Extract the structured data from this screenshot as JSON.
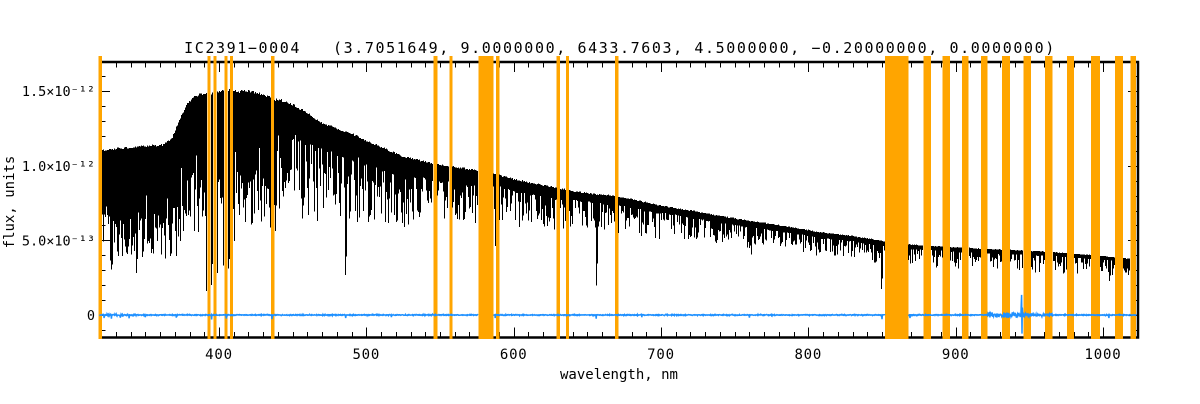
{
  "title": "IC2391−0004   (3.7051649, 9.0000000, 6433.7603, 4.5000000, −0.20000000, 0.0000000)",
  "colors": {
    "masked_band": "#FFA500",
    "spectrum": "#000000",
    "residual": "#1E90FF",
    "axis": "#000000"
  },
  "chart_data": {
    "type": "line",
    "xlabel": "wavelength, nm",
    "ylabel": "flux, units",
    "flux_unit": "1e-12 flux units per unit value",
    "x_range": [
      318,
      1023
    ],
    "y_range": [
      -0.152,
      1.695
    ],
    "x_ticks": [
      {
        "v": 400,
        "label": "400"
      },
      {
        "v": 500,
        "label": "500"
      },
      {
        "v": 600,
        "label": "600"
      },
      {
        "v": 700,
        "label": "700"
      },
      {
        "v": 800,
        "label": "800"
      },
      {
        "v": 900,
        "label": "900"
      },
      {
        "v": 1000,
        "label": "1000"
      }
    ],
    "y_ticks": [
      {
        "v": 0,
        "label": "0"
      },
      {
        "v": 0.5,
        "label": "5.0×10⁻¹³"
      },
      {
        "v": 1.0,
        "label": "1.0×10⁻¹²"
      },
      {
        "v": 1.5,
        "label": "1.5×10⁻¹²"
      }
    ],
    "x_minor_step": 10,
    "y_minor_step": 0.1,
    "masked_bands": [
      [
        318.3,
        320.6
      ],
      [
        392.1,
        394.3
      ],
      [
        396.1,
        398.4
      ],
      [
        403.6,
        405.9
      ],
      [
        407.5,
        409.7
      ],
      [
        435.3,
        437.6
      ],
      [
        545.5,
        548.2
      ],
      [
        556.3,
        558.4
      ],
      [
        576.0,
        586.2
      ],
      [
        588.0,
        590.3
      ],
      [
        629.2,
        631.4
      ],
      [
        635.5,
        637.6
      ],
      [
        668.8,
        671.1
      ],
      [
        852.1,
        867.9
      ],
      [
        878.1,
        883.1
      ],
      [
        891.2,
        896.2
      ],
      [
        904.2,
        908.7
      ],
      [
        917.3,
        921.5
      ],
      [
        931.3,
        937.0
      ],
      [
        946.0,
        951.0
      ],
      [
        960.7,
        965.7
      ],
      [
        975.4,
        980.4
      ],
      [
        991.7,
        998.0
      ],
      [
        1008.2,
        1013.4
      ],
      [
        1018.5,
        1022.3
      ]
    ],
    "spectrum": {
      "seed": 20391,
      "continuum": [
        [
          318,
          1.08
        ],
        [
          330,
          1.095
        ],
        [
          342,
          1.105
        ],
        [
          354,
          1.115
        ],
        [
          362,
          1.12
        ],
        [
          368,
          1.16
        ],
        [
          373,
          1.28
        ],
        [
          378,
          1.38
        ],
        [
          383,
          1.44
        ],
        [
          388,
          1.455
        ],
        [
          394,
          1.46
        ],
        [
          400,
          1.47
        ],
        [
          405,
          1.48
        ],
        [
          409,
          1.485
        ],
        [
          413,
          1.47
        ],
        [
          419,
          1.475
        ],
        [
          425,
          1.465
        ],
        [
          431,
          1.45
        ],
        [
          437,
          1.42
        ],
        [
          444,
          1.41
        ],
        [
          451,
          1.38
        ],
        [
          459,
          1.335
        ],
        [
          469,
          1.27
        ],
        [
          480,
          1.225
        ],
        [
          491,
          1.19
        ],
        [
          502,
          1.14
        ],
        [
          514,
          1.09
        ],
        [
          526,
          1.04
        ],
        [
          538,
          1.015
        ],
        [
          550,
          0.99
        ],
        [
          562,
          0.972
        ],
        [
          576,
          0.95
        ],
        [
          586,
          0.93
        ],
        [
          600,
          0.895
        ],
        [
          614,
          0.865
        ],
        [
          628,
          0.84
        ],
        [
          642,
          0.813
        ],
        [
          656,
          0.795
        ],
        [
          672,
          0.78
        ],
        [
          686,
          0.75
        ],
        [
          700,
          0.72
        ],
        [
          722,
          0.685
        ],
        [
          740,
          0.652
        ],
        [
          762,
          0.617
        ],
        [
          785,
          0.585
        ],
        [
          808,
          0.545
        ],
        [
          830,
          0.52
        ],
        [
          850,
          0.488
        ],
        [
          868,
          0.465
        ],
        [
          886,
          0.453
        ],
        [
          902,
          0.444
        ],
        [
          918,
          0.437
        ],
        [
          932,
          0.43
        ],
        [
          946,
          0.424
        ],
        [
          960,
          0.418
        ],
        [
          974,
          0.408
        ],
        [
          988,
          0.398
        ],
        [
          1000,
          0.388
        ],
        [
          1010,
          0.378
        ],
        [
          1018,
          0.37
        ],
        [
          1023,
          0.365
        ]
      ],
      "noise_regions": [
        [
          318,
          368,
          0.33,
          0.7,
          0.68
        ],
        [
          368,
          392,
          0.28,
          0.55,
          0.6
        ],
        [
          392,
          437,
          0.28,
          0.55,
          0.6
        ],
        [
          437,
          470,
          0.15,
          0.4,
          0.52
        ],
        [
          470,
          530,
          0.13,
          0.35,
          0.48
        ],
        [
          530,
          586,
          0.1,
          0.3,
          0.38
        ],
        [
          586,
          640,
          0.075,
          0.28,
          0.34
        ],
        [
          640,
          700,
          0.06,
          0.28,
          0.31
        ],
        [
          700,
          770,
          0.055,
          0.25,
          0.28
        ],
        [
          770,
          852,
          0.055,
          0.27,
          0.3
        ],
        [
          852,
          930,
          0.05,
          0.27,
          0.31
        ],
        [
          930,
          1023,
          0.05,
          0.27,
          0.34
        ]
      ],
      "absorption_features": [
        [
          322,
          0.42,
          0.5
        ],
        [
          327,
          0.3,
          0.8
        ],
        [
          331,
          0.38,
          0.6
        ],
        [
          336,
          0.44,
          0.6
        ],
        [
          344,
          0.28,
          0.7
        ],
        [
          348,
          0.36,
          0.6
        ],
        [
          352,
          0.42,
          0.6
        ],
        [
          358,
          0.34,
          0.7
        ],
        [
          361,
          0.4,
          0.5
        ],
        [
          364,
          0.46,
          0.6
        ],
        [
          367,
          0.35,
          0.5
        ],
        [
          369.5,
          0.45,
          0.5
        ],
        [
          371,
          0.33,
          0.8
        ],
        [
          374,
          0.42,
          0.6
        ],
        [
          376,
          0.52,
          0.6
        ],
        [
          379.5,
          0.45,
          0.5
        ],
        [
          383.5,
          0.5,
          0.7
        ],
        [
          386,
          0.5,
          0.5
        ],
        [
          388.6,
          0.42,
          0.5
        ],
        [
          389.8,
          0.48,
          0.4
        ],
        [
          391.5,
          0.16,
          1.2
        ],
        [
          394.9,
          0.2,
          1.0
        ],
        [
          395.6,
          0.34,
          0.5
        ],
        [
          399.0,
          0.28,
          1.0
        ],
        [
          401.5,
          0.55,
          0.4
        ],
        [
          403.0,
          0.32,
          0.9
        ],
        [
          406.4,
          0.3,
          0.9
        ],
        [
          407.1,
          0.36,
          0.4
        ],
        [
          410.3,
          0.4,
          1.0
        ],
        [
          414,
          0.62,
          0.5
        ],
        [
          417,
          0.68,
          0.5
        ],
        [
          420.5,
          0.66,
          0.5
        ],
        [
          422.8,
          0.6,
          0.7
        ],
        [
          427,
          0.7,
          0.5
        ],
        [
          430.5,
          0.72,
          0.4
        ],
        [
          434.7,
          0.48,
          1.0
        ],
        [
          438.2,
          0.52,
          1.0
        ],
        [
          441,
          0.72,
          0.4
        ],
        [
          445.5,
          0.7,
          0.5
        ],
        [
          449,
          0.75,
          0.4
        ],
        [
          453.5,
          0.72,
          0.4
        ],
        [
          458,
          0.78,
          0.5
        ],
        [
          464,
          0.8,
          0.4
        ],
        [
          473,
          0.78,
          0.5
        ],
        [
          478,
          0.84,
          0.4
        ],
        [
          483,
          0.8,
          0.4
        ],
        [
          486.1,
          0.19,
          1.2
        ],
        [
          489.5,
          0.75,
          0.4
        ],
        [
          493,
          0.8,
          0.4
        ],
        [
          498,
          0.82,
          0.5
        ],
        [
          504,
          0.8,
          0.4
        ],
        [
          509,
          0.78,
          0.5
        ],
        [
          513,
          0.72,
          0.5
        ],
        [
          517,
          0.68,
          0.9
        ],
        [
          520.6,
          0.69,
          0.6
        ],
        [
          524,
          0.74,
          0.4
        ],
        [
          528.5,
          0.585,
          0.8
        ],
        [
          532,
          0.64,
          0.5
        ],
        [
          537,
          0.7,
          0.4
        ],
        [
          542,
          0.73,
          0.4
        ],
        [
          552,
          0.78,
          0.4
        ],
        [
          560,
          0.8,
          0.4
        ],
        [
          565,
          0.78,
          0.4
        ],
        [
          570,
          0.8,
          0.4
        ],
        [
          574,
          0.82,
          0.3
        ],
        [
          587.6,
          0.44,
          0.5
        ],
        [
          591.5,
          0.6,
          0.4
        ],
        [
          595,
          0.72,
          0.4
        ],
        [
          599,
          0.75,
          0.4
        ],
        [
          605,
          0.74,
          0.4
        ],
        [
          610,
          0.72,
          0.5
        ],
        [
          615,
          0.74,
          0.4
        ],
        [
          620,
          0.73,
          0.4
        ],
        [
          625,
          0.74,
          0.4
        ],
        [
          633,
          0.72,
          0.4
        ],
        [
          639,
          0.7,
          0.4
        ],
        [
          644,
          0.72,
          0.4
        ],
        [
          649,
          0.73,
          0.4
        ],
        [
          653,
          0.7,
          0.4
        ],
        [
          656.4,
          0.165,
          1.1
        ],
        [
          660,
          0.7,
          0.4
        ],
        [
          665,
          0.71,
          0.4
        ],
        [
          669,
          0.55,
          0.5
        ],
        [
          674,
          0.68,
          0.4
        ],
        [
          680,
          0.67,
          0.4
        ],
        [
          686.9,
          0.52,
          0.9
        ],
        [
          690,
          0.62,
          0.5
        ],
        [
          695,
          0.64,
          0.4
        ],
        [
          699,
          0.6,
          0.5
        ],
        [
          705,
          0.63,
          0.4
        ],
        [
          711,
          0.6,
          0.5
        ],
        [
          716,
          0.55,
          0.7
        ],
        [
          719.5,
          0.52,
          0.7
        ],
        [
          723,
          0.57,
          0.6
        ],
        [
          728,
          0.62,
          0.4
        ],
        [
          734,
          0.62,
          0.4
        ],
        [
          742,
          0.6,
          0.4
        ],
        [
          748,
          0.6,
          0.4
        ],
        [
          753,
          0.59,
          0.4
        ],
        [
          760.3,
          0.4,
          0.6
        ],
        [
          761.6,
          0.38,
          0.7
        ],
        [
          764,
          0.45,
          0.5
        ],
        [
          766.5,
          0.47,
          0.8
        ],
        [
          771,
          0.55,
          0.4
        ],
        [
          777,
          0.56,
          0.4
        ],
        [
          783,
          0.55,
          0.4
        ],
        [
          790,
          0.54,
          0.4
        ],
        [
          795,
          0.52,
          0.5
        ],
        [
          801,
          0.52,
          0.4
        ],
        [
          806,
          0.5,
          0.4
        ],
        [
          812,
          0.4,
          0.9
        ],
        [
          815,
          0.42,
          0.7
        ],
        [
          818,
          0.38,
          0.9
        ],
        [
          822,
          0.42,
          0.7
        ],
        [
          826,
          0.46,
          0.5
        ],
        [
          833,
          0.45,
          0.6
        ],
        [
          839,
          0.46,
          0.5
        ],
        [
          843,
          0.44,
          0.5
        ],
        [
          846.5,
          0.32,
          0.6
        ],
        [
          849.9,
          0.13,
          0.9
        ],
        [
          851.4,
          0.34,
          0.4
        ],
        [
          869.2,
          0.35,
          0.5
        ],
        [
          871.8,
          0.4,
          0.5
        ],
        [
          875,
          0.41,
          0.4
        ],
        [
          885.5,
          0.39,
          0.4
        ],
        [
          889.3,
          0.37,
          0.5
        ],
        [
          897.8,
          0.36,
          0.6
        ],
        [
          901.5,
          0.35,
          0.5
        ],
        [
          910,
          0.38,
          0.5
        ],
        [
          914.6,
          0.37,
          0.5
        ],
        [
          923.5,
          0.39,
          0.4
        ],
        [
          927,
          0.38,
          0.5
        ],
        [
          929.5,
          0.37,
          0.4
        ],
        [
          940,
          0.365,
          0.7
        ],
        [
          943,
          0.38,
          0.5
        ],
        [
          953,
          0.375,
          0.5
        ],
        [
          957.5,
          0.37,
          0.5
        ],
        [
          968,
          0.365,
          0.5
        ],
        [
          972,
          0.37,
          0.4
        ],
        [
          983,
          0.36,
          0.5
        ],
        [
          988,
          0.355,
          0.5
        ],
        [
          1000.5,
          0.345,
          0.5
        ],
        [
          1004.6,
          0.215,
          0.9
        ],
        [
          1007,
          0.3,
          0.4
        ],
        [
          1014.2,
          0.285,
          0.6
        ],
        [
          1016.8,
          0.3,
          0.5
        ]
      ]
    },
    "residual": {
      "seed": 777,
      "baseline": 0.0,
      "base_sigma": 0.004,
      "noise_regions": [
        [
          318,
          345,
          0.007
        ],
        [
          922,
          948,
          0.024
        ],
        [
          948,
          966,
          0.012
        ]
      ],
      "gaps": [
        [
          576.0,
          586.2
        ],
        [
          852.1,
          867.9
        ]
      ],
      "spikes": [
        [
          322,
          -0.02
        ],
        [
          327,
          -0.025
        ],
        [
          333,
          -0.018
        ],
        [
          339,
          -0.022
        ],
        [
          350,
          -0.015
        ],
        [
          371,
          -0.018
        ],
        [
          395,
          -0.03
        ],
        [
          405,
          -0.024
        ],
        [
          436,
          -0.028
        ],
        [
          486,
          -0.02
        ],
        [
          517,
          -0.014
        ],
        [
          587.5,
          -0.02
        ],
        [
          656,
          -0.025
        ],
        [
          687,
          -0.015
        ],
        [
          760,
          -0.018
        ],
        [
          850,
          -0.028
        ],
        [
          869,
          -0.02
        ],
        [
          944.45,
          0.06
        ],
        [
          944.7,
          0.135
        ],
        [
          944.95,
          -0.125
        ],
        [
          945.2,
          0.05
        ],
        [
          1004,
          -0.02
        ]
      ]
    }
  }
}
